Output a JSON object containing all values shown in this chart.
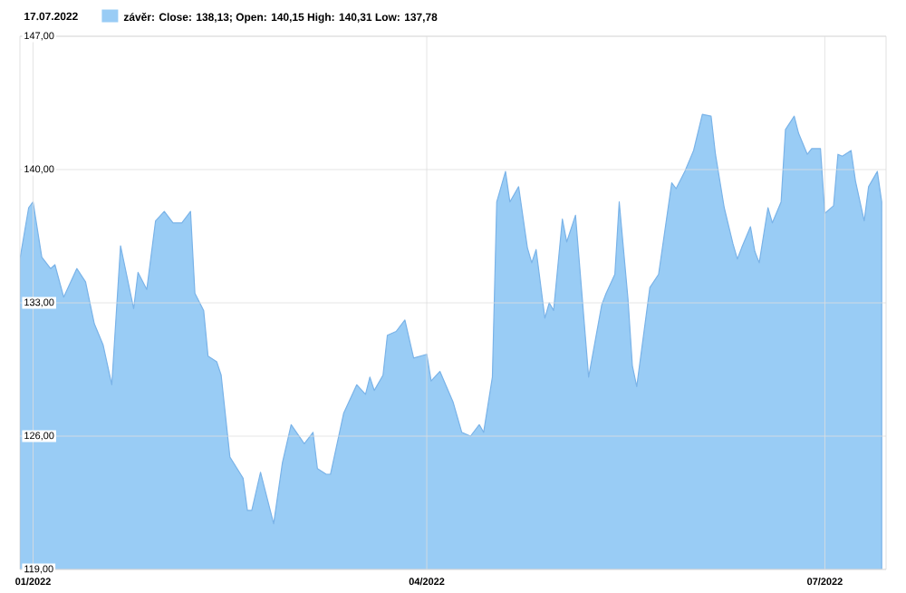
{
  "chart_data": {
    "type": "area",
    "title": "17.07.2022",
    "legend": "top left",
    "grid": true,
    "xlim": [
      "2021-12-29",
      "2022-07-15"
    ],
    "xticks": [
      {
        "value": "2022-01-01",
        "label": "01/2022"
      },
      {
        "value": "2022-04-01",
        "label": "04/2022"
      },
      {
        "value": "2022-07-01",
        "label": "07/2022"
      }
    ],
    "ylim": [
      119,
      147
    ],
    "yticks": [
      {
        "value": 119,
        "label": "119,00"
      },
      {
        "value": 126,
        "label": "126,00"
      },
      {
        "value": 133,
        "label": "133,00"
      },
      {
        "value": 140,
        "label": "140,00"
      },
      {
        "value": 147,
        "label": "147,00"
      }
    ],
    "x": [
      "2021-12-29",
      "2021-12-31",
      "2022-01-01",
      "2022-01-03",
      "2022-01-05",
      "2022-01-06",
      "2022-01-08",
      "2022-01-11",
      "2022-01-13",
      "2022-01-15",
      "2022-01-17",
      "2022-01-19",
      "2022-01-21",
      "2022-01-24",
      "2022-01-25",
      "2022-01-27",
      "2022-01-29",
      "2022-01-31",
      "2022-02-02",
      "2022-02-04",
      "2022-02-06",
      "2022-02-07",
      "2022-02-09",
      "2022-02-10",
      "2022-02-12",
      "2022-02-13",
      "2022-02-15",
      "2022-02-18",
      "2022-02-19",
      "2022-02-20",
      "2022-02-22",
      "2022-02-25",
      "2022-02-27",
      "2022-03-01",
      "2022-03-04",
      "2022-03-06",
      "2022-03-07",
      "2022-03-09",
      "2022-03-10",
      "2022-03-13",
      "2022-03-16",
      "2022-03-18",
      "2022-03-19",
      "2022-03-20",
      "2022-03-22",
      "2022-03-23",
      "2022-03-25",
      "2022-03-27",
      "2022-03-29",
      "2022-04-01",
      "2022-04-02",
      "2022-04-04",
      "2022-04-07",
      "2022-04-09",
      "2022-04-11",
      "2022-04-13",
      "2022-04-14",
      "2022-04-16",
      "2022-04-17",
      "2022-04-19",
      "2022-04-20",
      "2022-04-22",
      "2022-04-24",
      "2022-04-25",
      "2022-04-26",
      "2022-04-28",
      "2022-04-29",
      "2022-04-30",
      "2022-05-02",
      "2022-05-03",
      "2022-05-05",
      "2022-05-06",
      "2022-05-08",
      "2022-05-11",
      "2022-05-12",
      "2022-05-14",
      "2022-05-15",
      "2022-05-17",
      "2022-05-18",
      "2022-05-19",
      "2022-05-22",
      "2022-05-24",
      "2022-05-27",
      "2022-05-28",
      "2022-05-30",
      "2022-06-01",
      "2022-06-03",
      "2022-06-05",
      "2022-06-06",
      "2022-06-08",
      "2022-06-10",
      "2022-06-11",
      "2022-06-12",
      "2022-06-14",
      "2022-06-15",
      "2022-06-16",
      "2022-06-18",
      "2022-06-19",
      "2022-06-21",
      "2022-06-22",
      "2022-06-24",
      "2022-06-25",
      "2022-06-27",
      "2022-06-28",
      "2022-06-30",
      "2022-07-01",
      "2022-07-03",
      "2022-07-04",
      "2022-07-05",
      "2022-07-07",
      "2022-07-08",
      "2022-07-10",
      "2022-07-11",
      "2022-07-13",
      "2022-07-14"
    ],
    "series": [
      {
        "name": "závěr: Close: 138,13; Open: 140,15 High: 140,31 Low: 137,78",
        "color": "#99ccf5",
        "values": [
          135.3,
          138.0,
          138.3,
          135.4,
          134.8,
          135.0,
          133.3,
          134.8,
          134.1,
          131.9,
          130.8,
          128.7,
          136.0,
          132.7,
          134.6,
          133.7,
          137.3,
          137.8,
          137.2,
          137.2,
          137.8,
          133.5,
          132.6,
          130.2,
          129.9,
          129.2,
          124.9,
          123.8,
          122.1,
          122.1,
          124.1,
          121.4,
          124.6,
          126.6,
          125.6,
          126.2,
          124.3,
          124.0,
          124.0,
          127.2,
          128.7,
          128.2,
          129.1,
          128.4,
          129.2,
          131.3,
          131.5,
          132.1,
          130.1,
          130.3,
          128.9,
          129.4,
          127.8,
          126.2,
          126.0,
          126.6,
          126.2,
          129.1,
          138.3,
          139.9,
          138.3,
          139.1,
          135.9,
          135.1,
          135.8,
          132.2,
          133.0,
          132.6,
          137.4,
          136.2,
          137.6,
          134.8,
          129.1,
          132.9,
          133.5,
          134.5,
          138.3,
          133.2,
          129.7,
          128.6,
          133.8,
          134.5,
          139.3,
          139.0,
          139.9,
          141.0,
          142.9,
          142.8,
          140.8,
          138.0,
          136.1,
          135.3,
          135.9,
          137.0,
          135.7,
          135.1,
          138.0,
          137.2,
          138.3,
          142.1,
          142.8,
          141.9,
          140.8,
          141.1,
          141.1,
          137.7,
          138.1,
          140.8,
          140.7,
          141.0,
          139.4,
          137.3,
          139.1,
          139.9,
          138.3
        ]
      }
    ]
  }
}
